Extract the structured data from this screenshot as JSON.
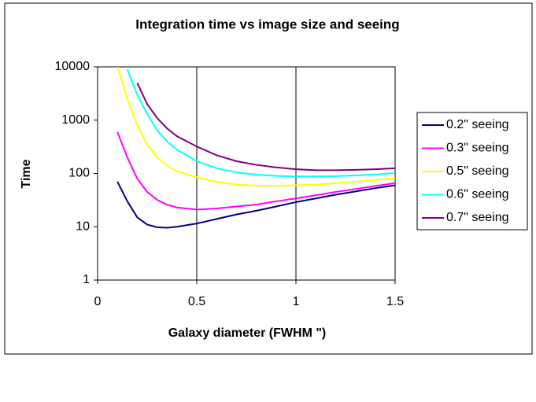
{
  "chart_data": {
    "type": "line",
    "title": "Integration time vs image size and seeing",
    "x_label": "Galaxy diameter (FWHM \")",
    "y_label": "Time",
    "x": [
      0.1,
      0.15,
      0.2,
      0.25,
      0.3,
      0.35,
      0.4,
      0.5,
      0.6,
      0.7,
      0.8,
      0.9,
      1.0,
      1.1,
      1.2,
      1.3,
      1.4,
      1.5
    ],
    "series": [
      {
        "name": "0.2\" seeing",
        "color": "#000080",
        "values": [
          70,
          30,
          15,
          11,
          9.8,
          9.6,
          10,
          11.5,
          14,
          17,
          20,
          24,
          29,
          34,
          40,
          46,
          53,
          60
        ]
      },
      {
        "name": "0.3\" seeing",
        "color": "#ff00ff",
        "values": [
          600,
          200,
          80,
          45,
          32,
          26,
          23,
          21,
          22,
          24,
          26,
          30,
          34,
          39,
          45,
          51,
          58,
          66
        ]
      },
      {
        "name": "0.5\" seeing",
        "color": "#ffff00",
        "values": [
          10000,
          2500,
          800,
          350,
          200,
          140,
          110,
          85,
          70,
          62,
          59,
          59,
          60,
          62,
          66,
          70,
          75,
          82
        ]
      },
      {
        "name": "0.6\" seeing",
        "color": "#00ffff",
        "values": [
          null,
          9000,
          3000,
          1300,
          650,
          400,
          280,
          170,
          125,
          105,
          95,
          90,
          88,
          88,
          89,
          92,
          96,
          102
        ]
      },
      {
        "name": "0.7\" seeing",
        "color": "#800080",
        "values": [
          null,
          null,
          5000,
          2000,
          1100,
          700,
          500,
          320,
          220,
          170,
          145,
          130,
          120,
          115,
          115,
          117,
          120,
          125
        ]
      }
    ],
    "xlim": [
      0,
      1.5
    ],
    "xticks": [
      0,
      0.5,
      1,
      1.5
    ],
    "ylim": [
      1,
      10000
    ],
    "yticks": [
      1,
      10,
      100,
      1000,
      10000
    ],
    "ylog": true,
    "grid": true,
    "legend": "right"
  }
}
